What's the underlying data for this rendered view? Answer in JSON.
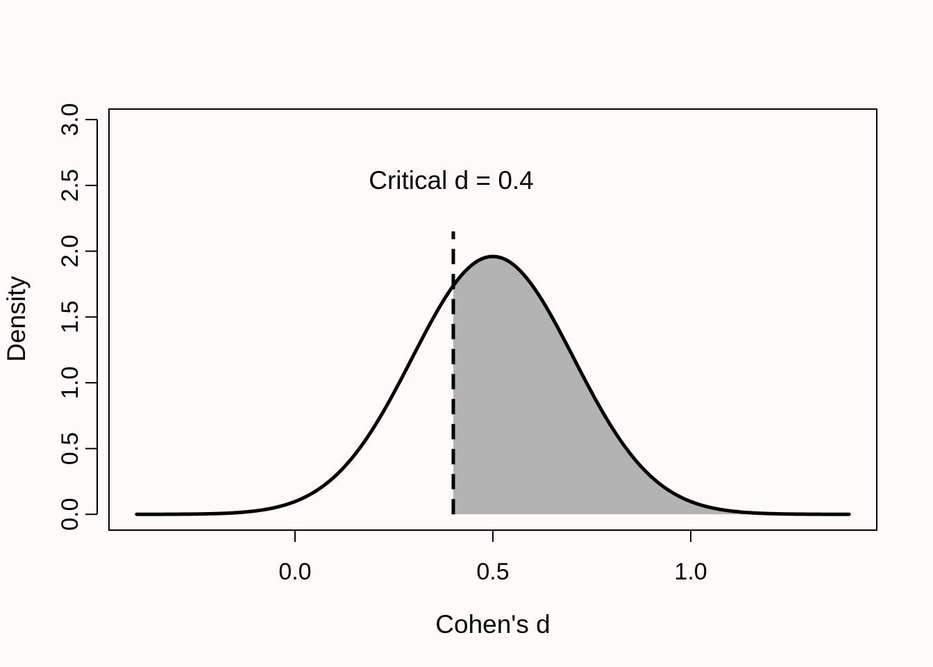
{
  "chart_data": {
    "type": "area",
    "title": "",
    "xlabel": "Cohen's d",
    "ylabel": "Density",
    "xlim": [
      -0.47,
      1.47
    ],
    "ylim": [
      -0.12,
      3.08
    ],
    "x_ticks": [
      "0.0",
      "0.5",
      "1.0"
    ],
    "x_tick_values": [
      0.0,
      0.5,
      1.0
    ],
    "y_ticks": [
      "0.0",
      "0.5",
      "1.0",
      "1.5",
      "2.0",
      "2.5",
      "3.0"
    ],
    "y_tick_values": [
      0.0,
      0.5,
      1.0,
      1.5,
      2.0,
      2.5,
      3.0
    ],
    "curve": {
      "distribution": "normal",
      "mean": 0.5,
      "sd": 0.204,
      "x_from": -0.4,
      "x_to": 1.4,
      "peak_density": 1.96
    },
    "shaded_region": {
      "x_from": 0.4,
      "x_to": 1.47,
      "color": "#b3b3b3"
    },
    "critical_line": {
      "x": 0.4,
      "y_from": 0,
      "y_to": 2.15,
      "style": "dashed"
    },
    "annotation": {
      "text": "Critical d =  0.4",
      "x": 0.4,
      "y": 2.55
    },
    "grid": false,
    "legend": "none",
    "colors": {
      "background": "#fdfaf9",
      "curve": "#000000",
      "fill": "#b3b3b3"
    }
  }
}
